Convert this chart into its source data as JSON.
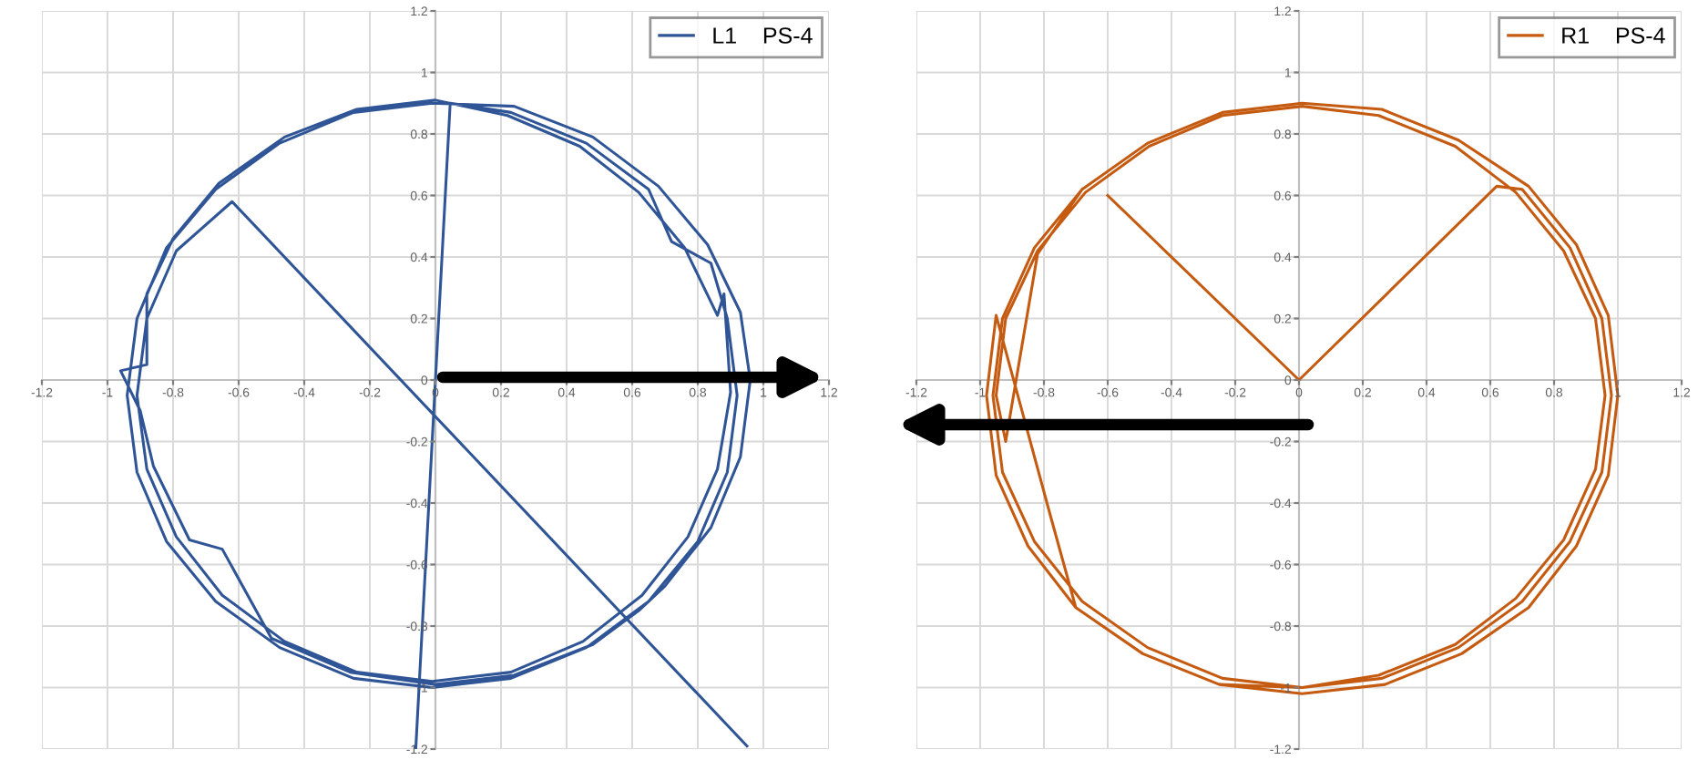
{
  "chart_data": [
    {
      "type": "line",
      "xlim": [
        -1.2,
        1.2
      ],
      "ylim": [
        -1.2,
        1.2
      ],
      "xticks": [
        -1.2,
        -1,
        -0.8,
        -0.6,
        -0.4,
        -0.2,
        0,
        0.2,
        0.4,
        0.6,
        0.8,
        1,
        1.2
      ],
      "yticks": [
        -1.2,
        -1,
        -0.8,
        -0.6,
        -0.4,
        -0.2,
        0,
        0.2,
        0.4,
        0.6,
        0.8,
        1,
        1.2
      ],
      "grid": true,
      "legend": "top right",
      "marker": "none",
      "line_style": "solid",
      "series": [
        {
          "name": "L1    PS-4",
          "color": "#2f5597",
          "x": [
            -0.06,
            0.045,
            0.23,
            0.46,
            0.65,
            0.72,
            0.84,
            0.89,
            0.92,
            0.89,
            0.8,
            0.65,
            0.46,
            0.23,
            -0.01,
            -0.25,
            -0.475,
            -0.67,
            -0.82,
            -0.91,
            -0.94,
            -0.91,
            -0.82,
            -0.67,
            -0.475,
            -0.25,
            -0.01,
            0.24,
            0.48,
            0.68,
            0.83,
            0.93,
            0.96,
            0.93,
            0.84,
            0.7,
            0.62,
            0.48,
            0.24,
            0.0,
            -0.26,
            -0.5,
            -0.65,
            -0.75,
            -0.86,
            -0.9,
            -0.96,
            -0.88,
            -0.88,
            -0.8,
            -0.66,
            -0.46,
            -0.24,
            0.0,
            0.22,
            0.44,
            0.62,
            0.76,
            0.86,
            0.88,
            0.9,
            0.86,
            0.77,
            0.63,
            0.45,
            0.23,
            -0.01,
            -0.24,
            -0.46,
            -0.65,
            -0.79,
            -0.88,
            -0.91,
            -0.88,
            -0.79,
            -0.62,
            0.95
          ],
          "values": [
            -1.2,
            0.9,
            0.87,
            0.77,
            0.62,
            0.45,
            0.38,
            0.2,
            -0.05,
            -0.3,
            -0.525,
            -0.72,
            -0.87,
            -0.97,
            -1.0,
            -0.97,
            -0.87,
            -0.72,
            -0.525,
            -0.3,
            -0.05,
            0.2,
            0.43,
            0.62,
            0.77,
            0.87,
            0.9,
            0.89,
            0.79,
            0.63,
            0.44,
            0.22,
            0.0,
            -0.25,
            -0.48,
            -0.67,
            -0.75,
            -0.86,
            -0.96,
            -0.99,
            -0.95,
            -0.84,
            -0.55,
            -0.52,
            -0.28,
            -0.1,
            0.03,
            0.05,
            0.28,
            0.46,
            0.64,
            0.79,
            0.88,
            0.91,
            0.86,
            0.76,
            0.61,
            0.43,
            0.21,
            0.28,
            -0.04,
            -0.29,
            -0.51,
            -0.7,
            -0.85,
            -0.95,
            -0.98,
            -0.95,
            -0.85,
            -0.7,
            -0.51,
            -0.29,
            -0.05,
            0.2,
            0.42,
            0.58,
            -1.19
          ]
        }
      ]
    },
    {
      "type": "line",
      "xlim": [
        -1.2,
        1.2
      ],
      "ylim": [
        -1.2,
        1.2
      ],
      "xticks": [
        -1.2,
        -1,
        -0.8,
        -0.6,
        -0.4,
        -0.2,
        0,
        0.2,
        0.4,
        0.6,
        0.8,
        1,
        1.2
      ],
      "yticks": [
        -1.2,
        -1,
        -0.8,
        -0.6,
        -0.4,
        -0.2,
        0,
        0.2,
        0.4,
        0.6,
        0.8,
        1,
        1.2
      ],
      "grid": true,
      "legend": "top right",
      "marker": "none",
      "line_style": "solid",
      "series": [
        {
          "name": "R1    PS-4",
          "color": "#c55a11",
          "x": [
            -0.6,
            0.0,
            0.62,
            0.7,
            0.85,
            0.95,
            0.98,
            0.95,
            0.85,
            0.7,
            0.5,
            0.26,
            0.01,
            -0.24,
            -0.475,
            -0.68,
            -0.83,
            -0.93,
            -0.96,
            -0.93,
            -0.83,
            -0.68,
            -0.475,
            -0.24,
            0.01,
            0.26,
            0.5,
            0.72,
            0.87,
            0.97,
            1.0,
            0.97,
            0.87,
            0.72,
            0.51,
            0.27,
            0.01,
            -0.25,
            -0.49,
            -0.7,
            -0.85,
            -0.95,
            -0.98,
            -0.95,
            -0.78,
            -0.7,
            -0.49,
            -0.25,
            0.01,
            0.25,
            0.49,
            0.68,
            0.83,
            0.93,
            0.96,
            0.93,
            0.83,
            0.68,
            0.49,
            0.25,
            0.01,
            -0.24,
            -0.47,
            -0.67,
            -0.82,
            -0.92,
            -0.95,
            -0.92,
            -0.82,
            -0.68
          ],
          "values": [
            0.6,
            0.0,
            0.63,
            0.62,
            0.43,
            0.2,
            -0.05,
            -0.3,
            -0.525,
            -0.72,
            -0.87,
            -0.97,
            -1.0,
            -0.97,
            -0.87,
            -0.72,
            -0.525,
            -0.3,
            -0.05,
            0.2,
            0.43,
            0.62,
            0.77,
            0.87,
            0.9,
            0.88,
            0.78,
            0.63,
            0.44,
            0.21,
            -0.05,
            -0.31,
            -0.54,
            -0.74,
            -0.89,
            -0.99,
            -1.02,
            -0.99,
            -0.89,
            -0.74,
            -0.54,
            -0.31,
            -0.05,
            0.21,
            -0.44,
            -0.74,
            -0.89,
            -0.99,
            -1.0,
            -0.96,
            -0.86,
            -0.71,
            -0.52,
            -0.29,
            -0.05,
            0.2,
            0.42,
            0.61,
            0.76,
            0.86,
            0.89,
            0.86,
            0.76,
            0.61,
            0.42,
            0.2,
            -0.05,
            -0.2,
            0.41,
            0.62
          ]
        }
      ]
    }
  ]
}
